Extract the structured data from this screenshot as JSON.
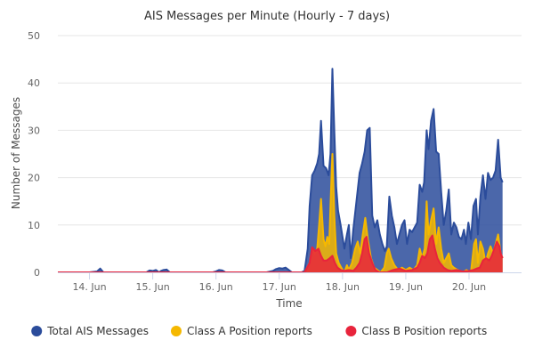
{
  "chart_data": {
    "type": "area",
    "title": "AIS Messages per Minute (Hourly - 7 days)",
    "xlabel": "Time",
    "ylabel": "Number of Messages",
    "ylim": [
      0,
      50
    ],
    "y_ticks": [
      0,
      10,
      20,
      30,
      40,
      50
    ],
    "x_unit": "day",
    "xlim": [
      13.5,
      20.83
    ],
    "x_ticks": [
      {
        "value": 14,
        "label": "14. Jun"
      },
      {
        "value": 15,
        "label": "15. Jun"
      },
      {
        "value": 16,
        "label": "16. Jun"
      },
      {
        "value": 17,
        "label": "17. Jun"
      },
      {
        "value": 18,
        "label": "18. Jun"
      },
      {
        "value": 19,
        "label": "19. Jun"
      },
      {
        "value": 20,
        "label": "20. Jun"
      }
    ],
    "grid": true,
    "legend_position": "bottom",
    "series": [
      {
        "name": "Total AIS Messages",
        "color": "#2b4c9b",
        "points": [
          [
            13.5,
            0
          ],
          [
            14.0,
            0
          ],
          [
            14.12,
            0.2
          ],
          [
            14.17,
            0.8
          ],
          [
            14.22,
            0
          ],
          [
            14.5,
            0
          ],
          [
            14.9,
            0
          ],
          [
            14.95,
            0.4
          ],
          [
            15.0,
            0.3
          ],
          [
            15.05,
            0.5
          ],
          [
            15.1,
            0
          ],
          [
            15.13,
            0.3
          ],
          [
            15.17,
            0.5
          ],
          [
            15.22,
            0.6
          ],
          [
            15.27,
            0
          ],
          [
            15.6,
            0
          ],
          [
            15.95,
            0
          ],
          [
            16.0,
            0.2
          ],
          [
            16.05,
            0.5
          ],
          [
            16.1,
            0.4
          ],
          [
            16.15,
            0
          ],
          [
            16.5,
            0
          ],
          [
            16.8,
            0
          ],
          [
            16.9,
            0.3
          ],
          [
            16.95,
            0.7
          ],
          [
            17.0,
            0.9
          ],
          [
            17.05,
            0.8
          ],
          [
            17.1,
            1.0
          ],
          [
            17.15,
            0.5
          ],
          [
            17.2,
            0
          ],
          [
            17.35,
            0
          ],
          [
            17.4,
            0.3
          ],
          [
            17.45,
            5
          ],
          [
            17.48,
            14
          ],
          [
            17.52,
            20.5
          ],
          [
            17.56,
            21.5
          ],
          [
            17.6,
            23
          ],
          [
            17.63,
            25
          ],
          [
            17.66,
            32
          ],
          [
            17.7,
            22.5
          ],
          [
            17.74,
            22
          ],
          [
            17.78,
            20.5
          ],
          [
            17.81,
            25
          ],
          [
            17.84,
            43
          ],
          [
            17.87,
            30
          ],
          [
            17.9,
            18
          ],
          [
            17.93,
            13
          ],
          [
            17.97,
            10
          ],
          [
            18.0,
            7.5
          ],
          [
            18.03,
            5
          ],
          [
            18.07,
            8
          ],
          [
            18.1,
            10
          ],
          [
            18.13,
            3
          ],
          [
            18.17,
            9
          ],
          [
            18.22,
            15
          ],
          [
            18.27,
            21
          ],
          [
            18.31,
            23
          ],
          [
            18.35,
            25.5
          ],
          [
            18.39,
            30
          ],
          [
            18.43,
            30.5
          ],
          [
            18.47,
            12
          ],
          [
            18.51,
            9.5
          ],
          [
            18.55,
            11
          ],
          [
            18.59,
            8
          ],
          [
            18.63,
            6
          ],
          [
            18.67,
            4.5
          ],
          [
            18.7,
            5.5
          ],
          [
            18.74,
            16
          ],
          [
            18.78,
            12
          ],
          [
            18.82,
            9.5
          ],
          [
            18.86,
            6
          ],
          [
            18.9,
            8
          ],
          [
            18.94,
            10
          ],
          [
            18.98,
            11
          ],
          [
            19.02,
            6
          ],
          [
            19.06,
            9
          ],
          [
            19.1,
            8.5
          ],
          [
            19.14,
            9.5
          ],
          [
            19.18,
            10.5
          ],
          [
            19.22,
            18.5
          ],
          [
            19.26,
            17
          ],
          [
            19.29,
            19
          ],
          [
            19.33,
            30
          ],
          [
            19.36,
            26
          ],
          [
            19.4,
            32
          ],
          [
            19.44,
            34.5
          ],
          [
            19.48,
            25.5
          ],
          [
            19.52,
            25
          ],
          [
            19.56,
            17
          ],
          [
            19.6,
            10
          ],
          [
            19.64,
            13
          ],
          [
            19.68,
            17.5
          ],
          [
            19.72,
            8
          ],
          [
            19.76,
            10.5
          ],
          [
            19.8,
            9.5
          ],
          [
            19.84,
            7.5
          ],
          [
            19.88,
            7
          ],
          [
            19.92,
            9
          ],
          [
            19.95,
            6
          ],
          [
            19.99,
            10.5
          ],
          [
            20.03,
            7
          ],
          [
            20.07,
            14
          ],
          [
            20.11,
            15.5
          ],
          [
            20.14,
            8
          ],
          [
            20.18,
            16
          ],
          [
            20.22,
            20.5
          ],
          [
            20.26,
            15.5
          ],
          [
            20.3,
            21
          ],
          [
            20.34,
            19.5
          ],
          [
            20.38,
            20
          ],
          [
            20.42,
            21.5
          ],
          [
            20.46,
            28
          ],
          [
            20.5,
            20
          ],
          [
            20.53,
            19
          ]
        ]
      },
      {
        "name": "Class A Position reports",
        "color": "#f5b800",
        "points": [
          [
            13.5,
            0
          ],
          [
            17.4,
            0
          ],
          [
            17.48,
            2
          ],
          [
            17.52,
            5
          ],
          [
            17.56,
            4
          ],
          [
            17.6,
            5
          ],
          [
            17.63,
            10
          ],
          [
            17.66,
            15.5
          ],
          [
            17.7,
            7
          ],
          [
            17.73,
            5.5
          ],
          [
            17.76,
            7.5
          ],
          [
            17.79,
            6
          ],
          [
            17.82,
            18
          ],
          [
            17.84,
            25
          ],
          [
            17.87,
            12
          ],
          [
            17.9,
            4
          ],
          [
            17.94,
            2
          ],
          [
            17.98,
            1
          ],
          [
            18.03,
            0
          ],
          [
            18.07,
            1.5
          ],
          [
            18.1,
            0.5
          ],
          [
            18.15,
            2
          ],
          [
            18.2,
            5
          ],
          [
            18.24,
            6.5
          ],
          [
            18.28,
            4
          ],
          [
            18.32,
            8
          ],
          [
            18.36,
            11.5
          ],
          [
            18.4,
            7
          ],
          [
            18.45,
            3
          ],
          [
            18.5,
            1
          ],
          [
            18.55,
            0.5
          ],
          [
            18.6,
            0
          ],
          [
            18.66,
            1
          ],
          [
            18.7,
            4
          ],
          [
            18.73,
            5
          ],
          [
            18.77,
            3
          ],
          [
            18.82,
            1.5
          ],
          [
            18.88,
            0.5
          ],
          [
            18.94,
            1
          ],
          [
            19.0,
            0.5
          ],
          [
            19.06,
            1
          ],
          [
            19.12,
            0.5
          ],
          [
            19.18,
            1.5
          ],
          [
            19.22,
            5
          ],
          [
            19.26,
            3
          ],
          [
            19.3,
            5
          ],
          [
            19.33,
            15
          ],
          [
            19.36,
            8
          ],
          [
            19.4,
            11
          ],
          [
            19.44,
            13.5
          ],
          [
            19.48,
            6
          ],
          [
            19.52,
            9.5
          ],
          [
            19.56,
            5
          ],
          [
            19.6,
            2
          ],
          [
            19.64,
            3
          ],
          [
            19.68,
            4
          ],
          [
            19.72,
            1.5
          ],
          [
            19.76,
            1
          ],
          [
            19.82,
            0.5
          ],
          [
            19.9,
            0
          ],
          [
            19.96,
            0.5
          ],
          [
            20.03,
            0
          ],
          [
            20.08,
            6
          ],
          [
            20.11,
            7
          ],
          [
            20.14,
            2
          ],
          [
            20.18,
            6.5
          ],
          [
            20.22,
            5
          ],
          [
            20.26,
            2
          ],
          [
            20.3,
            4
          ],
          [
            20.34,
            5.5
          ],
          [
            20.38,
            4
          ],
          [
            20.42,
            6
          ],
          [
            20.46,
            8
          ],
          [
            20.5,
            4
          ],
          [
            20.53,
            3
          ]
        ]
      },
      {
        "name": "Class B Position reports",
        "color": "#e8243c",
        "points": [
          [
            13.5,
            0
          ],
          [
            17.4,
            0
          ],
          [
            17.48,
            2
          ],
          [
            17.52,
            5.3
          ],
          [
            17.57,
            4.5
          ],
          [
            17.62,
            5
          ],
          [
            17.66,
            3.5
          ],
          [
            17.7,
            2.5
          ],
          [
            17.75,
            2.5
          ],
          [
            17.8,
            3
          ],
          [
            17.84,
            3.5
          ],
          [
            17.88,
            2
          ],
          [
            17.92,
            1
          ],
          [
            17.97,
            0.5
          ],
          [
            18.03,
            0.3
          ],
          [
            18.1,
            0.5
          ],
          [
            18.17,
            0.3
          ],
          [
            18.22,
            1
          ],
          [
            18.27,
            2
          ],
          [
            18.31,
            4
          ],
          [
            18.35,
            7
          ],
          [
            18.38,
            7.5
          ],
          [
            18.42,
            4
          ],
          [
            18.47,
            2
          ],
          [
            18.52,
            0.5
          ],
          [
            18.58,
            0
          ],
          [
            18.7,
            0
          ],
          [
            18.8,
            0.5
          ],
          [
            18.9,
            0.8
          ],
          [
            19.0,
            0.3
          ],
          [
            19.1,
            0.5
          ],
          [
            19.18,
            1
          ],
          [
            19.22,
            2
          ],
          [
            19.26,
            3.5
          ],
          [
            19.3,
            3
          ],
          [
            19.34,
            4
          ],
          [
            19.38,
            7
          ],
          [
            19.42,
            7.8
          ],
          [
            19.46,
            5
          ],
          [
            19.5,
            3
          ],
          [
            19.54,
            2
          ],
          [
            19.6,
            1
          ],
          [
            19.66,
            0.5
          ],
          [
            19.72,
            0.3
          ],
          [
            19.8,
            0.5
          ],
          [
            19.9,
            0.2
          ],
          [
            20.0,
            0.3
          ],
          [
            20.07,
            0.5
          ],
          [
            20.12,
            0.8
          ],
          [
            20.17,
            1
          ],
          [
            20.22,
            2.5
          ],
          [
            20.27,
            3
          ],
          [
            20.32,
            2.5
          ],
          [
            20.36,
            3.5
          ],
          [
            20.4,
            5
          ],
          [
            20.44,
            6.5
          ],
          [
            20.48,
            5.5
          ],
          [
            20.5,
            4
          ],
          [
            20.53,
            3
          ]
        ]
      }
    ]
  }
}
